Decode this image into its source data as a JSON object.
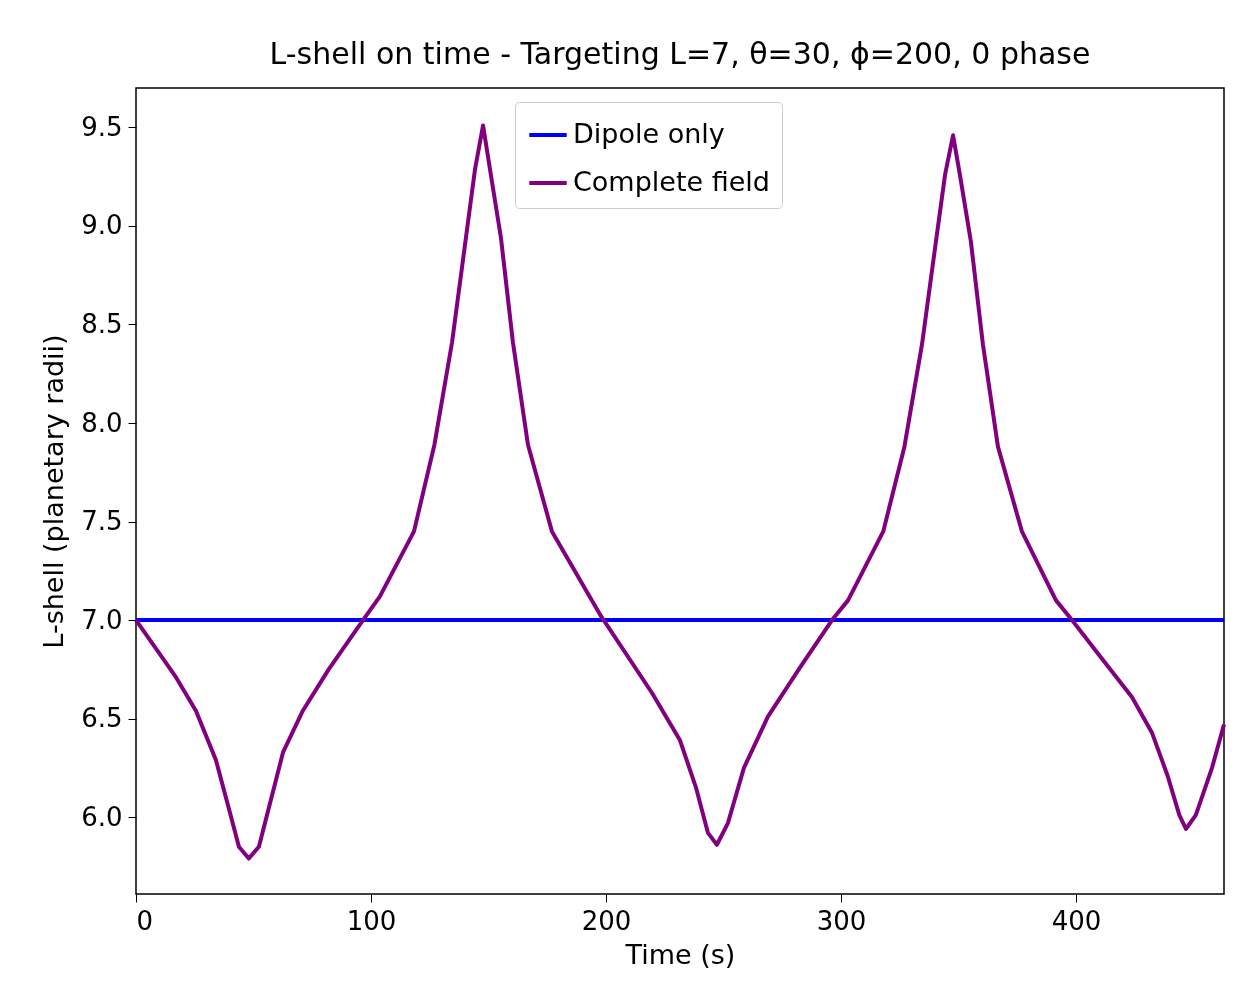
{
  "chart_data": {
    "type": "line",
    "title": "L-shell on time  - Targeting L=7, θ=30, ϕ=200, 0 phase",
    "xlabel": "Time (s)",
    "ylabel": "L-shell (planetary radii)",
    "xlim": [
      0,
      463
    ],
    "ylim": [
      5.61,
      9.7
    ],
    "xticks": [
      0,
      100,
      200,
      300,
      400
    ],
    "yticks": [
      {
        "value": 6,
        "label": "6.0"
      },
      6.5,
      {
        "value": 7,
        "label": "7.0"
      },
      7.5,
      {
        "value": 8,
        "label": "8.0"
      },
      8.5,
      {
        "value": 9,
        "label": "9.0"
      },
      9.5
    ],
    "grid": false,
    "legend": "top",
    "line_style": "solid",
    "marker": "none",
    "series": [
      {
        "name": "Dipole only",
        "color": "#0000ff",
        "x": [
          0,
          463
        ],
        "values": [
          7.0,
          7.0
        ]
      },
      {
        "name": "Complete field",
        "color": "#800080",
        "x": [
          0,
          17,
          25.5,
          34,
          39.6,
          43.8,
          48,
          52.3,
          56.6,
          62.6,
          71,
          82,
          96.6,
          103.8,
          118.3,
          127,
          134.5,
          140.4,
          144.3,
          147.7,
          150.6,
          155.3,
          160.4,
          166.8,
          177,
          197.9,
          219.6,
          231.5,
          238.3,
          243.4,
          247.2,
          251.9,
          258.7,
          268.9,
          282.6,
          296.2,
          303,
          318,
          327,
          334.5,
          340.4,
          344.3,
          347.7,
          350.6,
          355.3,
          360.4,
          366.8,
          377,
          391.5,
          398.3,
          410,
          423.8,
          432.3,
          439,
          444,
          446.8,
          451,
          457.9,
          463
        ],
        "values": [
          7.0,
          6.71,
          6.54,
          6.29,
          6.04,
          5.85,
          5.79,
          5.85,
          6.05,
          6.33,
          6.54,
          6.75,
          7.0,
          7.12,
          7.45,
          7.89,
          8.41,
          8.94,
          9.29,
          9.51,
          9.29,
          8.94,
          8.41,
          7.89,
          7.45,
          7.02,
          6.63,
          6.39,
          6.15,
          5.92,
          5.86,
          5.97,
          6.25,
          6.51,
          6.76,
          7.0,
          7.1,
          7.45,
          7.88,
          8.4,
          8.92,
          9.26,
          9.46,
          9.26,
          8.92,
          8.4,
          7.88,
          7.45,
          7.1,
          7.0,
          6.82,
          6.61,
          6.43,
          6.21,
          6.01,
          5.94,
          6.01,
          6.25,
          6.47
        ]
      }
    ]
  }
}
